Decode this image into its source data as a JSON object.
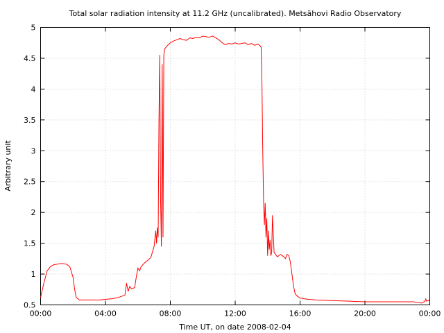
{
  "chart_data": {
    "type": "line",
    "title": "Total solar radiation intensity at 11.2 GHz (uncalibrated). Metsähovi Radio Observatory",
    "xlabel": "Time UT, on date 2008-02-04",
    "ylabel": "Arbitrary unit",
    "x_unit": "hours UT",
    "xlim": [
      0,
      24
    ],
    "ylim": [
      0.5,
      5
    ],
    "grid": true,
    "x_ticks": [
      {
        "value": 0,
        "label": "00:00"
      },
      {
        "value": 4,
        "label": "04:00"
      },
      {
        "value": 8,
        "label": "08:00"
      },
      {
        "value": 12,
        "label": "12:00"
      },
      {
        "value": 16,
        "label": "16:00"
      },
      {
        "value": 20,
        "label": "20:00"
      },
      {
        "value": 24,
        "label": "00:00"
      }
    ],
    "y_ticks": [
      {
        "value": 0.5,
        "label": "0.5"
      },
      {
        "value": 1,
        "label": "1"
      },
      {
        "value": 1.5,
        "label": "1.5"
      },
      {
        "value": 2,
        "label": "2"
      },
      {
        "value": 2.5,
        "label": "2.5"
      },
      {
        "value": 3,
        "label": "3"
      },
      {
        "value": 3.5,
        "label": "3.5"
      },
      {
        "value": 4,
        "label": "4"
      },
      {
        "value": 4.5,
        "label": "4.5"
      },
      {
        "value": 5,
        "label": "5"
      }
    ],
    "series": [
      {
        "color": "#ff0000",
        "x": [
          0.0,
          0.2,
          0.4,
          0.6,
          0.8,
          1.0,
          1.2,
          1.4,
          1.6,
          1.8,
          2.0,
          2.1,
          2.2,
          2.4,
          2.8,
          3.2,
          3.6,
          4.0,
          4.4,
          4.8,
          5.0,
          5.2,
          5.3,
          5.4,
          5.5,
          5.6,
          5.8,
          5.9,
          6.0,
          6.1,
          6.2,
          6.4,
          6.6,
          6.8,
          7.0,
          7.1,
          7.15,
          7.2,
          7.25,
          7.3,
          7.35,
          7.4,
          7.45,
          7.5,
          7.55,
          7.6,
          7.65,
          7.8,
          8.0,
          8.2,
          8.4,
          8.6,
          8.8,
          9.0,
          9.2,
          9.4,
          9.6,
          9.8,
          10.0,
          10.2,
          10.4,
          10.6,
          10.8,
          11.0,
          11.2,
          11.4,
          11.6,
          11.8,
          12.0,
          12.2,
          12.4,
          12.6,
          12.8,
          13.0,
          13.2,
          13.4,
          13.55,
          13.6,
          13.65,
          13.7,
          13.75,
          13.8,
          13.85,
          13.9,
          13.95,
          14.0,
          14.05,
          14.1,
          14.15,
          14.2,
          14.25,
          14.3,
          14.4,
          14.6,
          14.8,
          15.0,
          15.1,
          15.2,
          15.3,
          15.4,
          15.5,
          15.6,
          15.7,
          15.8,
          16.0,
          16.5,
          17.0,
          18.0,
          19.0,
          20.0,
          21.0,
          22.0,
          23.0,
          23.5,
          23.7,
          23.75,
          23.8,
          24.0
        ],
        "y": [
          0.62,
          0.85,
          1.05,
          1.12,
          1.15,
          1.16,
          1.17,
          1.17,
          1.16,
          1.12,
          0.95,
          0.75,
          0.62,
          0.58,
          0.58,
          0.58,
          0.58,
          0.59,
          0.6,
          0.62,
          0.64,
          0.66,
          0.85,
          0.72,
          0.8,
          0.76,
          0.78,
          0.95,
          1.1,
          1.05,
          1.12,
          1.18,
          1.22,
          1.27,
          1.45,
          1.7,
          1.5,
          1.75,
          1.6,
          3.5,
          4.55,
          2.2,
          1.45,
          4.4,
          1.6,
          4.55,
          4.65,
          4.7,
          4.75,
          4.78,
          4.8,
          4.82,
          4.8,
          4.79,
          4.83,
          4.82,
          4.84,
          4.83,
          4.86,
          4.85,
          4.84,
          4.86,
          4.83,
          4.8,
          4.75,
          4.72,
          4.74,
          4.73,
          4.75,
          4.73,
          4.74,
          4.75,
          4.72,
          4.74,
          4.71,
          4.73,
          4.7,
          4.68,
          4.1,
          3.0,
          2.2,
          1.8,
          2.15,
          1.6,
          1.9,
          1.3,
          1.7,
          1.4,
          1.55,
          1.3,
          1.35,
          1.95,
          1.35,
          1.28,
          1.32,
          1.28,
          1.25,
          1.32,
          1.3,
          1.2,
          1.0,
          0.8,
          0.68,
          0.65,
          0.61,
          0.59,
          0.58,
          0.57,
          0.56,
          0.55,
          0.55,
          0.55,
          0.55,
          0.53,
          0.56,
          0.6,
          0.56,
          0.58
        ]
      }
    ]
  }
}
